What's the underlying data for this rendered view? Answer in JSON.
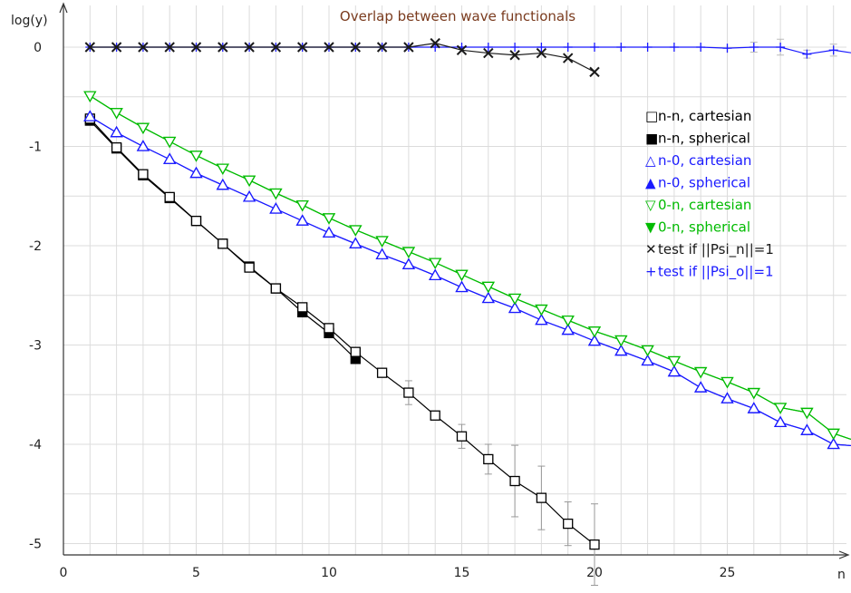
{
  "chart_data": {
    "type": "line",
    "title": "Overlap between wave functionals",
    "xlabel": "n",
    "ylabel": "log(y)",
    "xlim": [
      0,
      29
    ],
    "ylim": [
      -5.25,
      0.3
    ],
    "x_ticks": [
      0,
      5,
      10,
      15,
      20,
      25
    ],
    "y_ticks": [
      0,
      -1,
      -2,
      -3,
      -4,
      -5
    ],
    "grid": true,
    "legend_position": "right",
    "colors": {
      "title": "#7a3b1e",
      "grid": "#dcdcdc",
      "axis": "#333333"
    },
    "series": [
      {
        "name": "n-n, cartesian",
        "color": "#000000",
        "marker": "square-open",
        "x": [
          1,
          2,
          3,
          4,
          5,
          6,
          7,
          8,
          9,
          10,
          11,
          12,
          13,
          14,
          15,
          16,
          17,
          18,
          19,
          20
        ],
        "y": [
          -0.72,
          -1.01,
          -1.28,
          -1.51,
          -1.75,
          -1.98,
          -2.22,
          -2.43,
          -2.62,
          -2.83,
          -3.07,
          -3.28,
          -3.48,
          -3.71,
          -3.92,
          -4.15,
          -4.37,
          -4.54,
          -4.8,
          -5.01
        ],
        "err": [
          0,
          0,
          0,
          0,
          0,
          0,
          0,
          0,
          0,
          0,
          0,
          0,
          0.12,
          0,
          0.12,
          0.15,
          0.36,
          0.32,
          0.22,
          0.41
        ]
      },
      {
        "name": "n-n, spherical",
        "color": "#000000",
        "marker": "square-filled",
        "x": [
          1,
          2,
          3,
          4,
          5,
          6,
          7,
          8,
          9,
          10,
          11
        ],
        "y": [
          -0.74,
          -1.02,
          -1.29,
          -1.52,
          -1.75,
          -1.98,
          -2.21,
          -2.43,
          -2.67,
          -2.88,
          -3.14
        ]
      },
      {
        "name": "n-0, cartesian",
        "color": "#1a1aff",
        "marker": "triangle-up-open",
        "x": [
          1,
          2,
          3,
          4,
          5,
          6,
          7,
          8,
          9,
          10,
          11,
          12,
          13,
          14,
          15,
          16,
          17,
          18,
          19,
          20,
          21,
          22,
          23,
          24,
          25,
          26,
          27,
          28,
          29,
          30
        ],
        "y": [
          -0.7,
          -0.86,
          -1.0,
          -1.13,
          -1.27,
          -1.39,
          -1.51,
          -1.63,
          -1.75,
          -1.87,
          -1.98,
          -2.09,
          -2.19,
          -2.3,
          -2.42,
          -2.53,
          -2.63,
          -2.75,
          -2.85,
          -2.96,
          -3.06,
          -3.16,
          -3.27,
          -3.43,
          -3.54,
          -3.64,
          -3.78,
          -3.86,
          -4.0,
          -4.02
        ]
      },
      {
        "name": "n-0, spherical",
        "color": "#1a1aff",
        "marker": "triangle-up-filled",
        "x": [
          1,
          2,
          3,
          4,
          5,
          6,
          7,
          8,
          9,
          10,
          11,
          12,
          13,
          14,
          15,
          16,
          17,
          18,
          19,
          20,
          21,
          22,
          23,
          24,
          25,
          26,
          27,
          28,
          29,
          30
        ],
        "y": [
          -0.7,
          -0.86,
          -1.0,
          -1.13,
          -1.27,
          -1.39,
          -1.51,
          -1.63,
          -1.75,
          -1.87,
          -1.98,
          -2.09,
          -2.19,
          -2.3,
          -2.42,
          -2.53,
          -2.63,
          -2.75,
          -2.85,
          -2.96,
          -3.06,
          -3.16,
          -3.27,
          -3.43,
          -3.54,
          -3.64,
          -3.78,
          -3.86,
          -4.0,
          -4.02
        ]
      },
      {
        "name": "0-n, cartesian",
        "color": "#00bb00",
        "marker": "triangle-down-open",
        "x": [
          1,
          2,
          3,
          4,
          5,
          6,
          7,
          8,
          9,
          10,
          11,
          12,
          13,
          14,
          15,
          16,
          17,
          18,
          19,
          20,
          21,
          22,
          23,
          24,
          25,
          26,
          27,
          28,
          29,
          30
        ],
        "y": [
          -0.49,
          -0.66,
          -0.81,
          -0.95,
          -1.09,
          -1.22,
          -1.34,
          -1.47,
          -1.59,
          -1.72,
          -1.84,
          -1.95,
          -2.06,
          -2.17,
          -2.29,
          -2.41,
          -2.53,
          -2.64,
          -2.75,
          -2.86,
          -2.95,
          -3.05,
          -3.16,
          -3.27,
          -3.37,
          -3.48,
          -3.63,
          -3.68,
          -3.89,
          -3.98
        ]
      },
      {
        "name": "0-n, spherical",
        "color": "#00bb00",
        "marker": "triangle-down-filled",
        "x": [
          1,
          2,
          3,
          4,
          5,
          6,
          7,
          8,
          9,
          10,
          11,
          12,
          13,
          14,
          15,
          16,
          17,
          18,
          19,
          20,
          21,
          22,
          23,
          24,
          25,
          26,
          27,
          28,
          29,
          30
        ],
        "y": [
          -0.49,
          -0.66,
          -0.81,
          -0.95,
          -1.09,
          -1.22,
          -1.34,
          -1.47,
          -1.59,
          -1.72,
          -1.84,
          -1.95,
          -2.06,
          -2.17,
          -2.29,
          -2.41,
          -2.53,
          -2.64,
          -2.75,
          -2.86,
          -2.95,
          -3.05,
          -3.16,
          -3.27,
          -3.37,
          -3.48,
          -3.63,
          -3.68,
          -3.89,
          -3.98
        ]
      },
      {
        "name": "test if ||Psi_n||=1",
        "color": "#1a1a1a",
        "marker": "x",
        "x": [
          1,
          2,
          3,
          4,
          5,
          6,
          7,
          8,
          9,
          10,
          11,
          12,
          13,
          14,
          15,
          16,
          17,
          18,
          19,
          20
        ],
        "y": [
          0,
          0,
          0,
          0,
          0,
          0,
          0,
          0,
          0,
          0,
          0,
          0,
          0,
          0.04,
          -0.03,
          -0.06,
          -0.08,
          -0.06,
          -0.11,
          -0.25
        ]
      },
      {
        "name": "test if ||Psi_o||=1",
        "color": "#1a1aff",
        "marker": "plus",
        "x": [
          1,
          2,
          3,
          4,
          5,
          6,
          7,
          8,
          9,
          10,
          11,
          12,
          13,
          14,
          15,
          16,
          17,
          18,
          19,
          20,
          21,
          22,
          23,
          24,
          25,
          26,
          27,
          28,
          29,
          30
        ],
        "y": [
          0,
          0,
          0,
          0,
          0,
          0,
          0,
          0,
          0,
          0,
          0,
          0,
          0,
          0,
          0,
          0,
          0,
          0,
          0,
          0,
          0,
          0,
          0,
          0,
          -0.01,
          0,
          0,
          -0.07,
          -0.03,
          -0.07
        ],
        "err": [
          0,
          0,
          0,
          0,
          0,
          0,
          0,
          0,
          0,
          0,
          0,
          0,
          0,
          0,
          0,
          0,
          0,
          0,
          0,
          0,
          0,
          0,
          0,
          0,
          0,
          0.05,
          0.08,
          0.04,
          0.06,
          0.07
        ]
      }
    ]
  }
}
